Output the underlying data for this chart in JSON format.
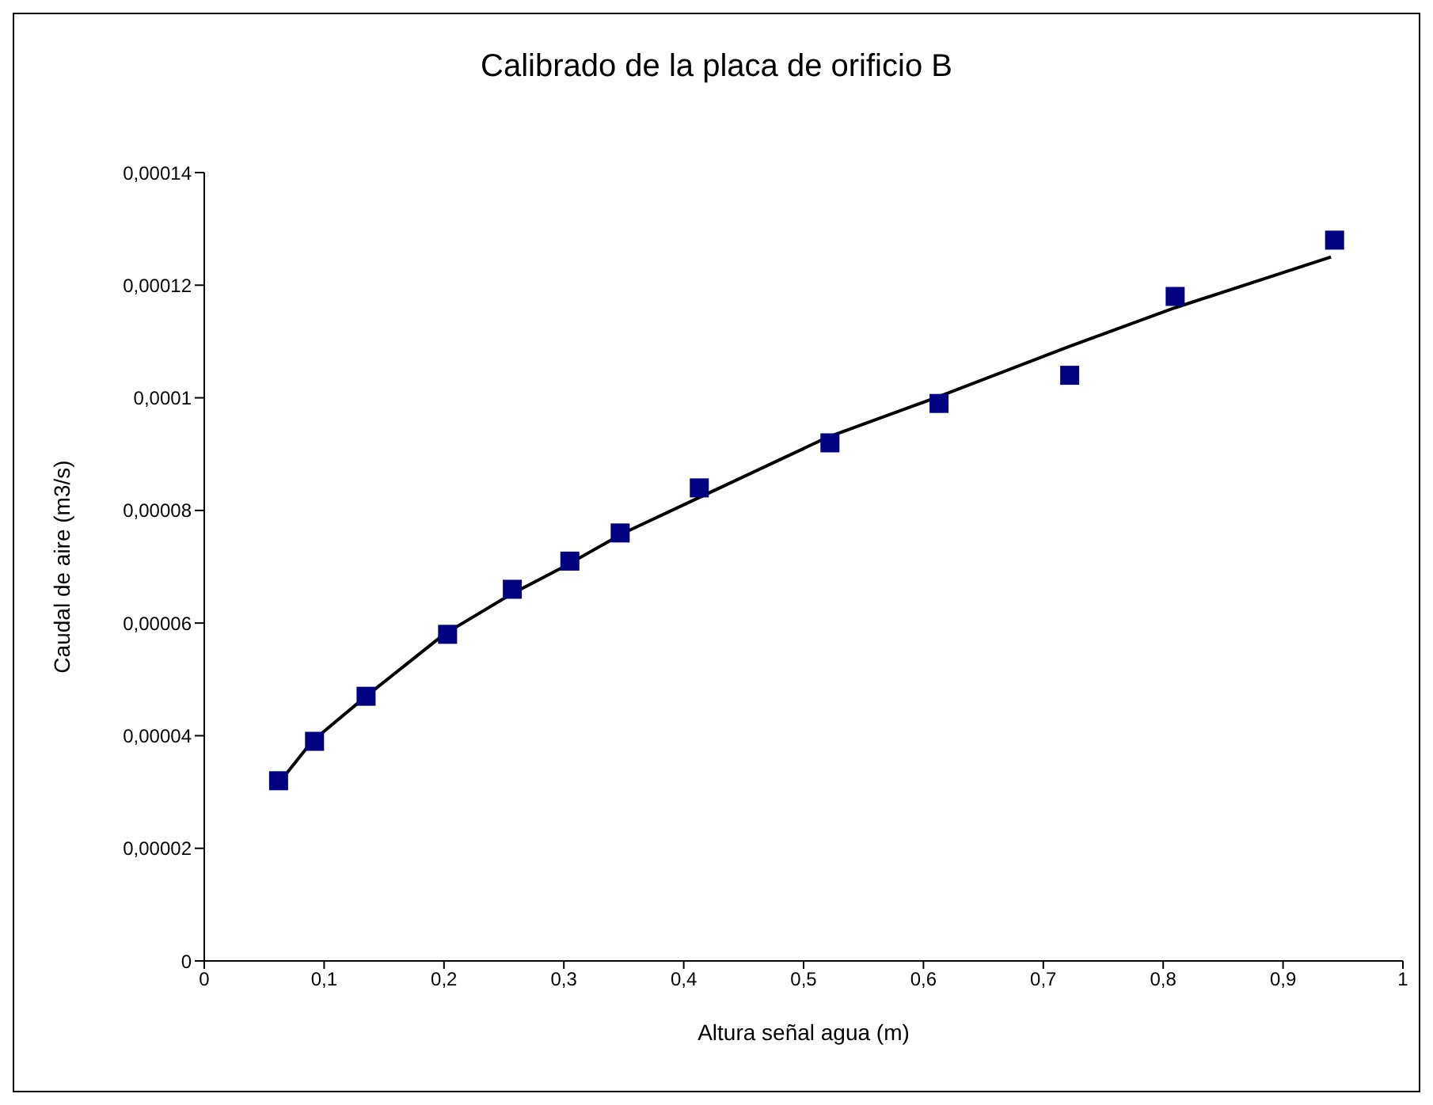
{
  "chart_data": {
    "type": "scatter",
    "title": "Calibrado de la placa de orificio B",
    "xlabel": "Altura señal agua (m)",
    "ylabel": "Caudal de aire (m3/s)",
    "xlim": [
      0,
      1
    ],
    "xticks": [
      0,
      {
        "value": 0.1,
        "label": "0,1"
      },
      {
        "value": 0.2,
        "label": "0,2"
      },
      {
        "value": 0.3,
        "label": "0,3"
      },
      {
        "value": 0.4,
        "label": "0,4"
      },
      {
        "value": 0.5,
        "label": "0,5"
      },
      {
        "value": 0.6,
        "label": "0,6"
      },
      {
        "value": 0.7,
        "label": "0,7"
      },
      {
        "value": 0.8,
        "label": "0,8"
      },
      {
        "value": 0.9,
        "label": "0,9"
      },
      1
    ],
    "ylim": [
      0,
      0.00014
    ],
    "yticks": [
      0,
      {
        "value": 2e-05,
        "label": "0,00002"
      },
      {
        "value": 4e-05,
        "label": "0,00004"
      },
      {
        "value": 6e-05,
        "label": "0,00006"
      },
      {
        "value": 8e-05,
        "label": "0,00008"
      },
      {
        "value": 0.0001,
        "label": "0,0001"
      },
      {
        "value": 0.00012,
        "label": "0,00012"
      },
      {
        "value": 0.00014,
        "label": "0,00014"
      }
    ],
    "grid": false,
    "series": [
      {
        "color": "#000080",
        "marker": "square",
        "x": [
          0.062,
          0.092,
          0.135,
          0.203,
          0.257,
          0.305,
          0.347,
          0.413,
          0.522,
          0.613,
          0.722,
          0.81,
          0.943
        ],
        "values": [
          3.2e-05,
          3.9e-05,
          4.7e-05,
          5.8e-05,
          6.6e-05,
          7.1e-05,
          7.6e-05,
          8.4e-05,
          9.2e-05,
          9.9e-05,
          0.000104,
          0.000118,
          0.000128
        ]
      },
      {
        "type": "line",
        "color": "#000000",
        "marker": "none",
        "line_style": "solid",
        "x": [
          0.06,
          0.09,
          0.135,
          0.2,
          0.255,
          0.3,
          0.35,
          0.41,
          0.52,
          0.61,
          0.72,
          0.81,
          0.94
        ],
        "values": [
          3.1e-05,
          3.9e-05,
          4.7e-05,
          5.8e-05,
          6.5e-05,
          7e-05,
          7.6e-05,
          8.2e-05,
          9.3e-05,
          0.0001,
          0.000109,
          0.000116,
          0.000125
        ]
      }
    ]
  }
}
